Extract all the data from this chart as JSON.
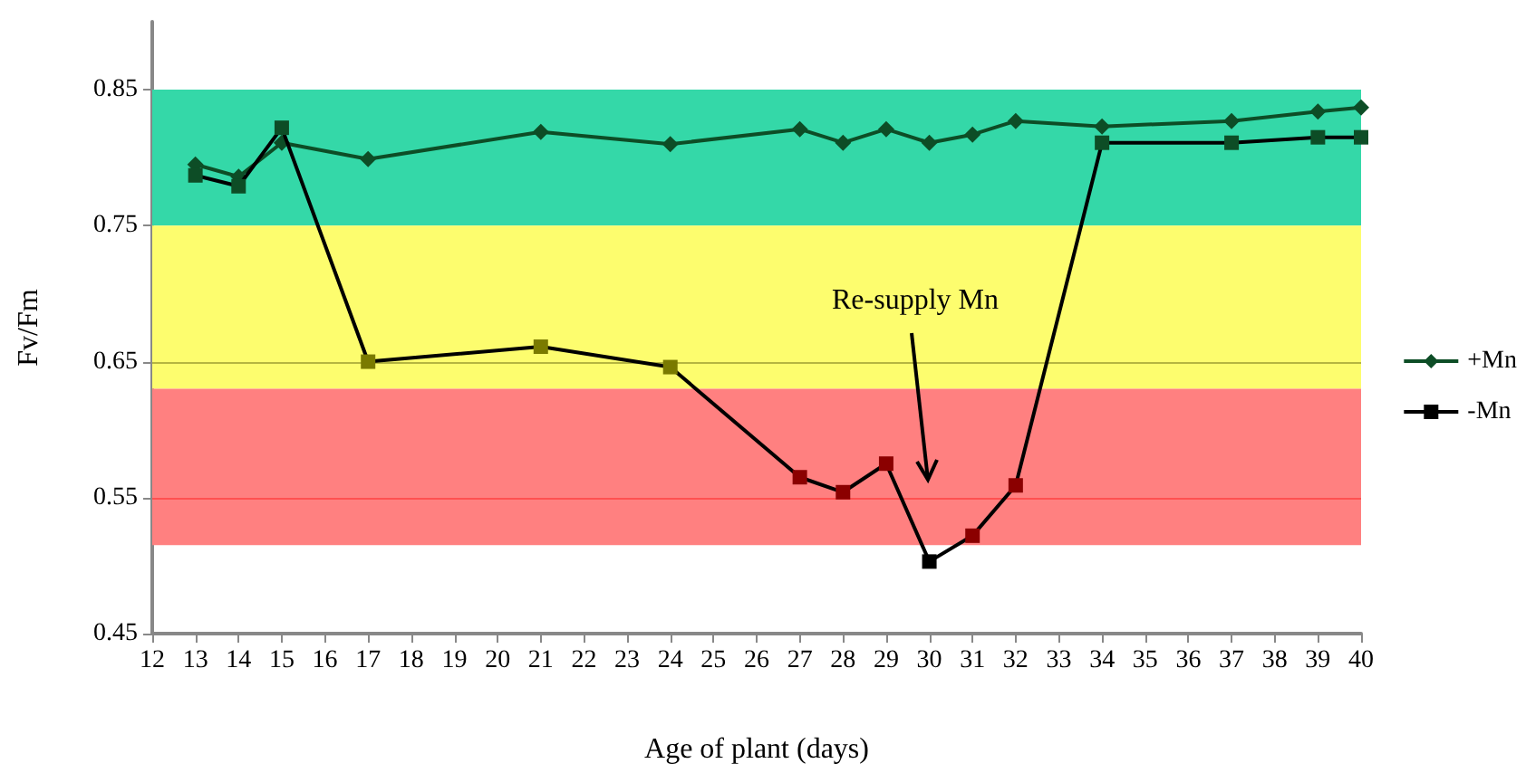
{
  "chart_data": {
    "type": "line",
    "xlabel": "Age of plant (days)",
    "ylabel": "Fv/Fm",
    "x": [
      13,
      14,
      15,
      17,
      21,
      24,
      27,
      28,
      29,
      30,
      31,
      32,
      34,
      37,
      39,
      40
    ],
    "series": [
      {
        "name": "+Mn",
        "color": "#0d4d26",
        "marker": "diamond",
        "values": [
          0.795,
          0.786,
          0.811,
          0.799,
          0.819,
          0.81,
          0.821,
          0.811,
          0.821,
          0.811,
          0.817,
          0.827,
          0.823,
          0.827,
          0.834,
          0.837
        ]
      },
      {
        "name": "-Mn",
        "color": "#000000",
        "marker": "square",
        "colors": [
          "#0d4d26",
          "#0d4d26",
          "#0d4d26",
          "#7a7a00",
          "#7a7a00",
          "#7a7a00",
          "#8b0000",
          "#8b0000",
          "#8b0000",
          "#000000",
          "#8b0000",
          "#8b0000",
          "#0d4d26",
          "#0d4d26",
          "#0d4d26",
          "#0d4d26"
        ],
        "values": [
          0.787,
          0.779,
          0.822,
          0.65,
          0.661,
          0.646,
          0.565,
          0.554,
          0.575,
          0.503,
          0.522,
          0.559,
          0.811,
          0.811,
          0.815,
          0.815
        ]
      }
    ],
    "xlim": [
      12,
      40
    ],
    "xticks": [
      12,
      13,
      14,
      15,
      16,
      17,
      18,
      19,
      20,
      21,
      22,
      23,
      24,
      25,
      26,
      27,
      28,
      29,
      30,
      31,
      32,
      33,
      34,
      35,
      36,
      37,
      38,
      39,
      40
    ],
    "ylim": [
      0.45,
      0.9
    ],
    "yticks": [
      0.45,
      0.55,
      0.65,
      0.75,
      0.85
    ],
    "bands": [
      {
        "axis": "y",
        "from": 0.75,
        "to": 0.85,
        "color": "#34d8a8"
      },
      {
        "axis": "y",
        "from": 0.63,
        "to": 0.75,
        "color": "#fdfd6e"
      },
      {
        "axis": "y",
        "from": 0.515,
        "to": 0.63,
        "color": "#ff8080"
      }
    ],
    "ref_lines": [
      {
        "axis": "y",
        "value": 0.65,
        "color": "#b5b540"
      },
      {
        "axis": "y",
        "value": 0.55,
        "color": "#ff5050"
      }
    ],
    "annotations": [
      "Re-supply Mn"
    ],
    "grid": false,
    "legend": "right"
  }
}
